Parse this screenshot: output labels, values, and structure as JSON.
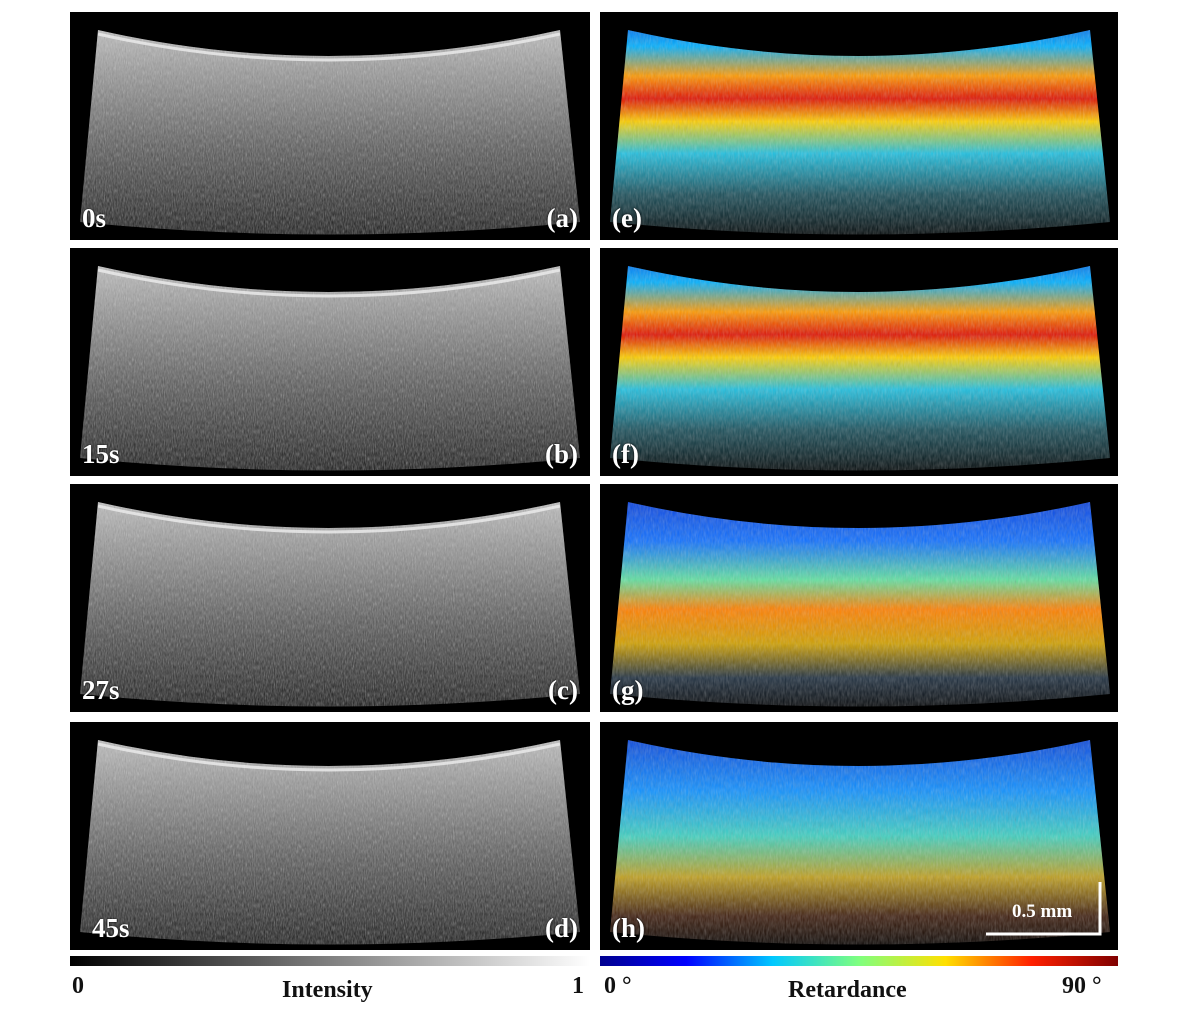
{
  "intensity_panels": [
    {
      "time": "0s",
      "letter": "(a)"
    },
    {
      "time": "15s",
      "letter": "(b)"
    },
    {
      "time": "27s",
      "letter": "(c)"
    },
    {
      "time": "45s",
      "letter": "(d)"
    }
  ],
  "retardance_panels": [
    {
      "letter": "(e)"
    },
    {
      "letter": "(f)"
    },
    {
      "letter": "(g)"
    },
    {
      "letter": "(h)"
    }
  ],
  "scale_bar": {
    "label": "0.5 mm"
  },
  "intensity_colorbar": {
    "min": "0",
    "label": "Intensity",
    "max": "1",
    "colors": [
      "#000000",
      "#ffffff"
    ]
  },
  "retardance_colorbar": {
    "min": "0 °",
    "label": "Retardance",
    "max": "90 °",
    "colors": [
      "#00008f",
      "#0000ff",
      "#00c8ff",
      "#7fff7f",
      "#ffe000",
      "#ff2000",
      "#7f0000"
    ]
  }
}
